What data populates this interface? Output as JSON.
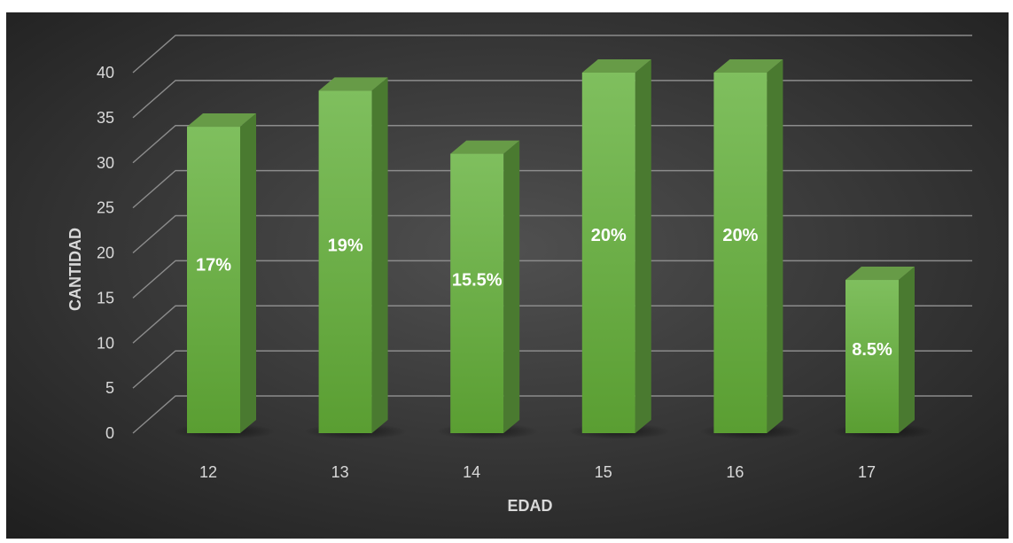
{
  "chart_data": {
    "type": "bar",
    "categories": [
      "12",
      "13",
      "14",
      "15",
      "16",
      "17"
    ],
    "values": [
      34,
      38,
      31,
      40,
      40,
      17
    ],
    "data_labels": [
      "17%",
      "19%",
      "15.5%",
      "20%",
      "20%",
      "8.5%"
    ],
    "xlabel": "EDAD",
    "ylabel": "CANTIDAD",
    "ylim": [
      0,
      40
    ],
    "yticks": [
      "0",
      "5",
      "10",
      "15",
      "20",
      "25",
      "30",
      "35",
      "40"
    ],
    "grid": true,
    "style": "3d-column",
    "colors": {
      "bar_front_top": "#7fbf5e",
      "bar_front_bottom": "#5a9e32",
      "bar_side": "#4a7a30",
      "bar_top": "#679b47",
      "background_center": "#4e4e4e",
      "background_edge": "#1f1f1f",
      "gridline": "#8c8c8c",
      "text": "#d9d9d9"
    }
  }
}
